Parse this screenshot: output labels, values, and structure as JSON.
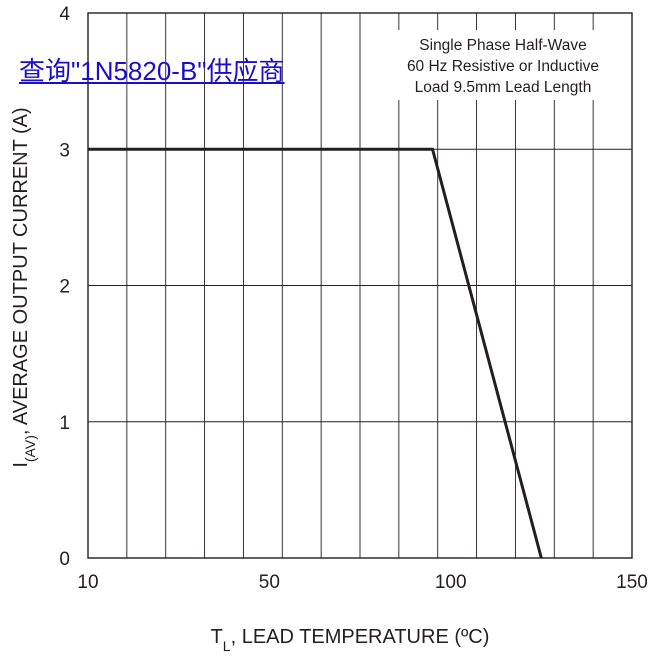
{
  "link": {
    "text": "查询\"1N5820-B\"供应商"
  },
  "chart_data": {
    "type": "line",
    "xlabel_main": "T",
    "xlabel_sub": "L",
    "xlabel_rest": ", LEAD TEMPERATURE (ºC)",
    "ylabel_main": "I",
    "ylabel_sub": "(AV)",
    "ylabel_rest": ", AVERAGE OUTPUT CURRENT (A)",
    "xlim": [
      10,
      150
    ],
    "ylim": [
      0,
      4
    ],
    "x_ticks": [
      {
        "value": 10,
        "label": "10"
      },
      {
        "value": 50,
        "label": "50"
      },
      {
        "value": 100,
        "label": "100"
      },
      {
        "value": 150,
        "label": "150"
      }
    ],
    "y_ticks": [
      {
        "value": 0,
        "label": "0"
      },
      {
        "value": 1,
        "label": "1"
      },
      {
        "value": 2,
        "label": "2"
      },
      {
        "value": 3,
        "label": "3"
      },
      {
        "value": 4,
        "label": "4"
      }
    ],
    "grid": true,
    "series": [
      {
        "x": [
          10,
          95,
          125
        ],
        "y": [
          3,
          3,
          0
        ]
      }
    ],
    "annotation": [
      "Single Phase Half-Wave",
      "60 Hz Resistive or Inductive",
      "Load 9.5mm Lead Length"
    ]
  }
}
